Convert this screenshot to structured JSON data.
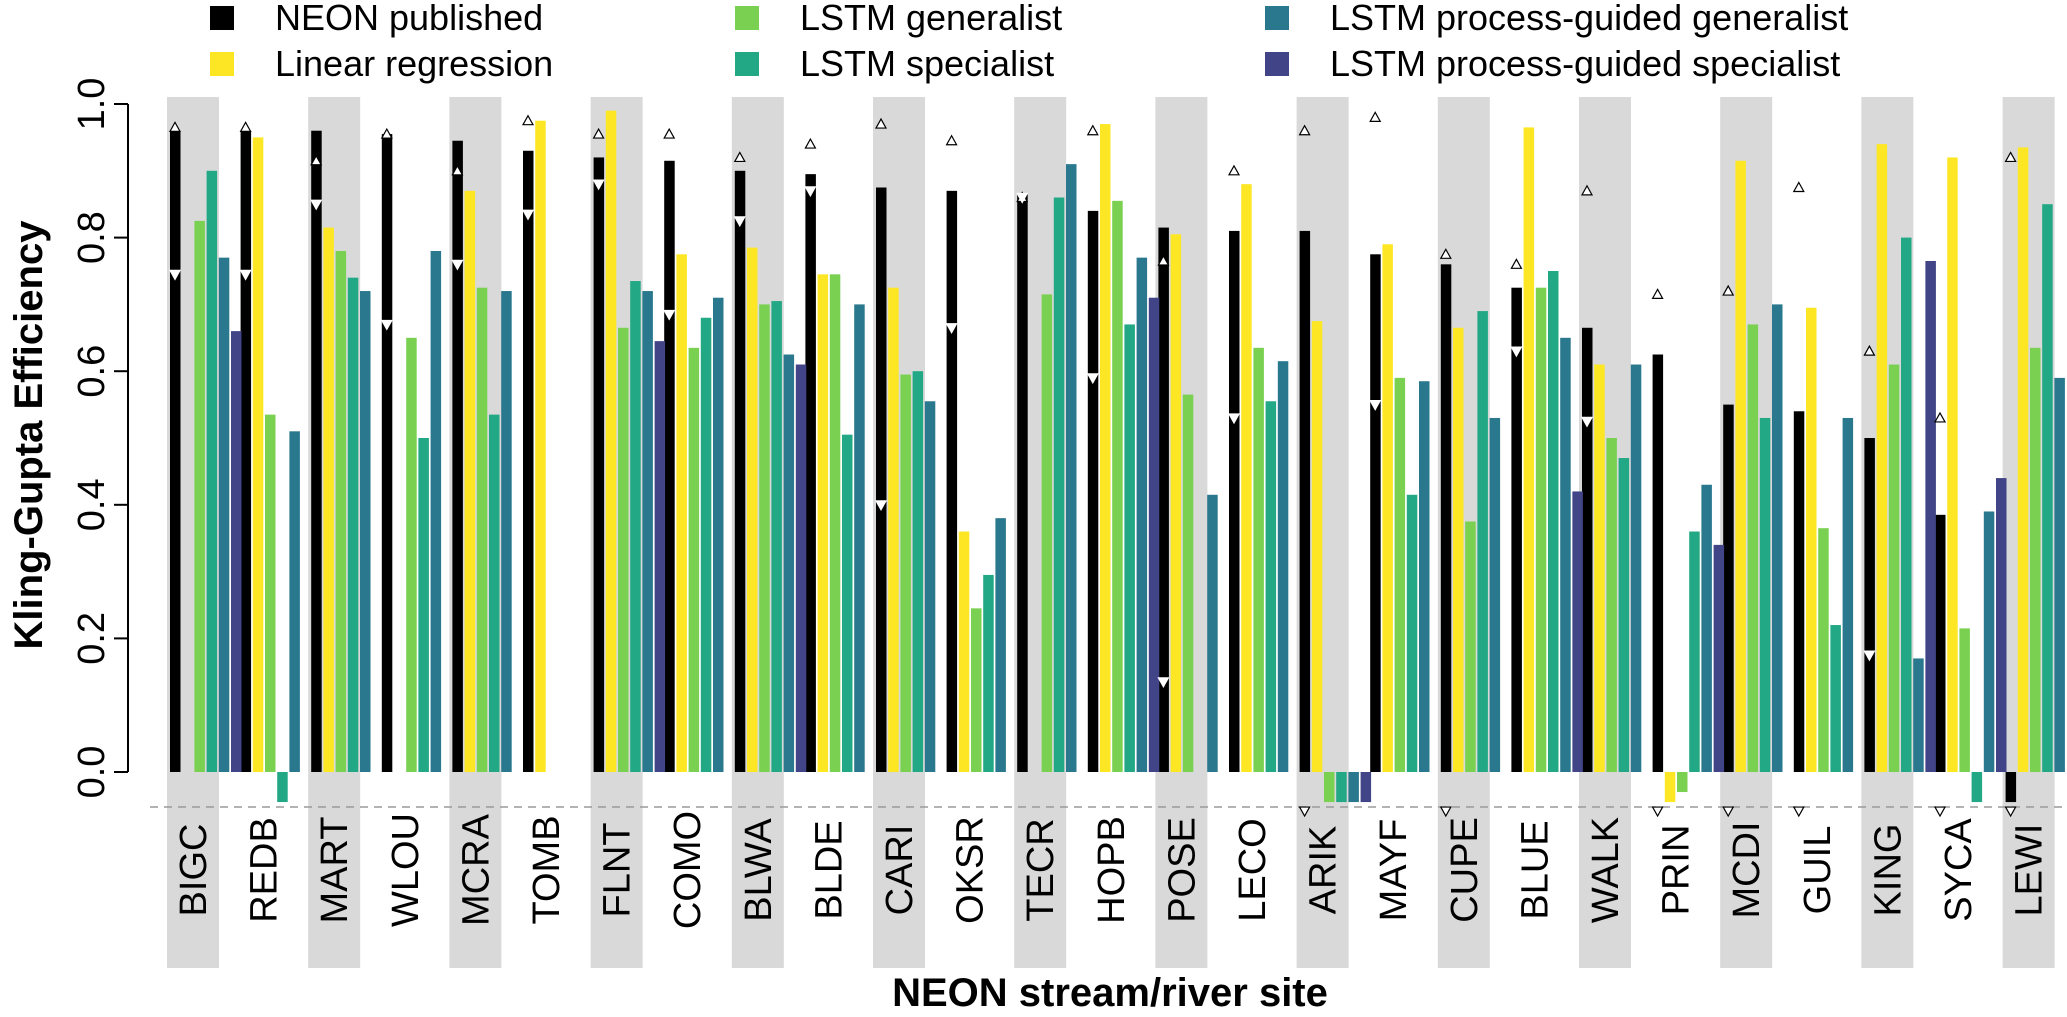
{
  "chart_data": {
    "type": "bar",
    "title": "",
    "xlabel": "NEON stream/river site",
    "ylabel": "Kling-Gupta Efficiency",
    "ylim": [
      -0.05,
      1.0
    ],
    "yticks": [
      "0.0",
      "0.2",
      "0.4",
      "0.6",
      "0.8",
      "1.0"
    ],
    "ytick_values": [
      0,
      0.2,
      0.4,
      0.6,
      0.8,
      1.0
    ],
    "floor_value": -0.045,
    "legend_placement": "top",
    "categories": [
      "BIGC",
      "REDB",
      "MART",
      "WLOU",
      "MCRA",
      "TOMB",
      "FLNT",
      "COMO",
      "BLWA",
      "BLDE",
      "CARI",
      "OKSR",
      "TECR",
      "HOPB",
      "POSE",
      "LECO",
      "ARIK",
      "MAYF",
      "CUPE",
      "BLUE",
      "WALK",
      "PRIN",
      "MCDI",
      "GUIL",
      "KING",
      "SYCA",
      "LEWI"
    ],
    "series": [
      {
        "name": "NEON published",
        "color": "#000000",
        "values": [
          0.96,
          0.96,
          0.96,
          0.955,
          0.945,
          0.93,
          0.92,
          0.915,
          0.9,
          0.895,
          0.875,
          0.87,
          0.865,
          0.84,
          0.815,
          0.81,
          0.81,
          0.775,
          0.76,
          0.725,
          0.665,
          0.625,
          0.55,
          0.54,
          0.5,
          0.385,
          -0.045
        ]
      },
      {
        "name": "Linear regression",
        "color": "#FDE725",
        "values": [
          null,
          0.95,
          0.815,
          null,
          0.87,
          0.975,
          0.99,
          0.775,
          0.785,
          0.745,
          0.725,
          0.36,
          null,
          0.97,
          0.805,
          0.88,
          0.675,
          0.79,
          0.665,
          0.965,
          0.61,
          -0.045,
          0.915,
          0.695,
          0.94,
          0.92,
          0.935
        ]
      },
      {
        "name": "LSTM generalist",
        "color": "#7AD151",
        "values": [
          0.825,
          0.535,
          0.78,
          0.65,
          0.725,
          null,
          0.665,
          0.635,
          0.7,
          0.745,
          0.595,
          0.245,
          0.715,
          0.855,
          0.565,
          0.635,
          -0.045,
          0.59,
          0.375,
          0.725,
          0.5,
          -0.03,
          0.67,
          0.365,
          0.61,
          0.215,
          0.635
        ]
      },
      {
        "name": "LSTM specialist",
        "color": "#22A884",
        "values": [
          0.9,
          -0.045,
          0.74,
          0.5,
          0.535,
          null,
          0.735,
          0.68,
          0.705,
          0.505,
          0.6,
          0.295,
          0.86,
          0.67,
          null,
          0.555,
          -0.045,
          0.415,
          0.69,
          0.75,
          0.47,
          0.36,
          0.53,
          0.22,
          0.8,
          -0.045,
          0.85
        ]
      },
      {
        "name": "LSTM process-guided generalist",
        "color": "#2A788E",
        "values": [
          0.77,
          0.51,
          0.72,
          0.78,
          0.72,
          null,
          0.72,
          0.71,
          0.625,
          0.7,
          0.555,
          0.38,
          0.91,
          0.77,
          0.415,
          0.615,
          -0.045,
          0.585,
          0.53,
          0.65,
          0.61,
          0.43,
          0.7,
          0.53,
          0.17,
          0.39,
          0.59
        ]
      },
      {
        "name": "LSTM process-guided specialist",
        "color": "#414487",
        "values": [
          0.66,
          null,
          null,
          null,
          null,
          null,
          0.645,
          null,
          0.61,
          null,
          null,
          null,
          null,
          0.71,
          null,
          null,
          -0.045,
          null,
          null,
          0.42,
          null,
          0.34,
          null,
          null,
          0.765,
          0.44,
          null
        ]
      }
    ],
    "upper_markers": [
      0.965,
      0.965,
      0.915,
      0.955,
      0.9,
      0.975,
      0.955,
      0.955,
      0.92,
      0.94,
      0.97,
      0.945,
      0.86,
      0.96,
      0.765,
      0.9,
      0.96,
      0.98,
      0.775,
      0.76,
      0.87,
      0.715,
      0.72,
      0.875,
      0.63,
      0.53,
      0.92
    ],
    "lower_markers": [
      0.745,
      0.745,
      0.85,
      0.67,
      0.76,
      0.835,
      0.88,
      0.685,
      0.825,
      0.87,
      0.4,
      0.665,
      0.86,
      0.59,
      0.135,
      0.53,
      -0.045,
      0.55,
      -0.045,
      0.63,
      0.525,
      -0.045,
      -0.045,
      -0.045,
      0.175,
      -0.045,
      -0.045
    ]
  }
}
